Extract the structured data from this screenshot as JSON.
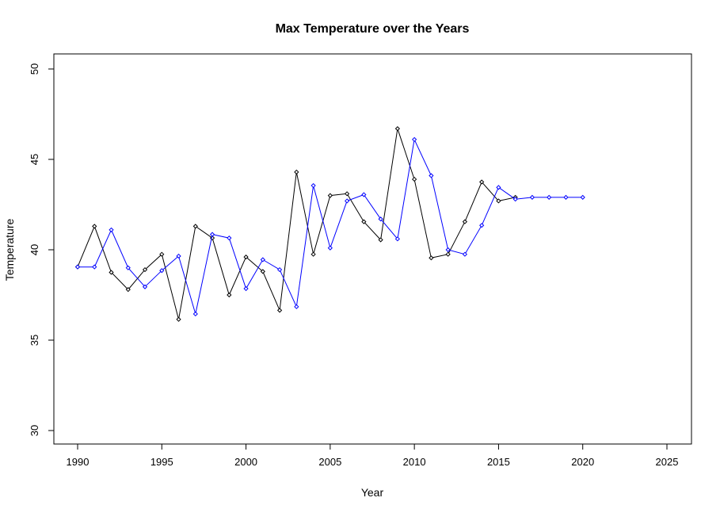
{
  "chart_data": {
    "type": "line",
    "title": "Max Temperature over the Years",
    "xlabel": "Year",
    "ylabel": "Temperature",
    "xlim": [
      1990,
      2025
    ],
    "ylim": [
      30,
      50
    ],
    "xticks": [
      1990,
      1995,
      2000,
      2005,
      2010,
      2015,
      2020,
      2025
    ],
    "yticks": [
      30,
      35,
      40,
      45,
      50
    ],
    "grid": false,
    "series": [
      {
        "color": "#000000",
        "x": [
          1990,
          1991,
          1992,
          1993,
          1994,
          1995,
          1996,
          1997,
          1998,
          1999,
          2000,
          2001,
          2002,
          2003,
          2004,
          2005,
          2006,
          2007,
          2008,
          2009,
          2010,
          2011,
          2012,
          2013,
          2014,
          2015,
          2016
        ],
        "y": [
          39.05,
          41.3,
          38.75,
          37.8,
          38.9,
          39.75,
          36.15,
          41.3,
          40.65,
          37.5,
          39.6,
          38.8,
          36.65,
          44.3,
          39.75,
          43.0,
          43.1,
          41.55,
          40.55,
          46.7,
          43.9,
          39.55,
          39.75,
          41.55,
          43.75,
          42.7,
          42.9
        ]
      },
      {
        "color": "#0000ff",
        "x": [
          1990,
          1991,
          1992,
          1993,
          1994,
          1995,
          1996,
          1997,
          1998,
          1999,
          2000,
          2001,
          2002,
          2003,
          2004,
          2005,
          2006,
          2007,
          2008,
          2009,
          2010,
          2011,
          2012,
          2013,
          2014,
          2015,
          2016,
          2017,
          2018,
          2019,
          2020
        ],
        "y": [
          39.05,
          39.05,
          41.1,
          39.0,
          37.95,
          38.85,
          39.65,
          36.45,
          40.85,
          40.65,
          37.85,
          39.45,
          38.9,
          36.85,
          43.55,
          40.1,
          42.7,
          43.05,
          41.7,
          40.6,
          46.1,
          44.1,
          40.0,
          39.75,
          41.35,
          43.45,
          42.8,
          42.9,
          42.9,
          42.9,
          42.9
        ]
      }
    ]
  }
}
